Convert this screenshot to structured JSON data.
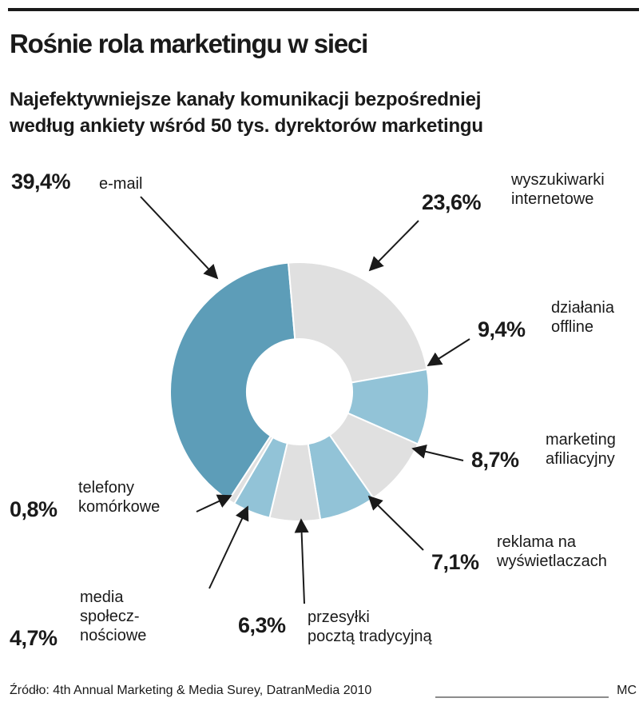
{
  "chart_data": {
    "type": "donut",
    "title": "Rośnie rola marketingu w sieci",
    "subtitle": "Najefektywniejsze kanały komunikacji bezpośredniej\nwedług ankiety wśród 50 tys. dyrektorów marketingu",
    "categories": [
      "e-mail",
      "wyszukiwarki\ninternetowe",
      "działania\noffline",
      "marketing\nafiliacyjny",
      "reklama na\nwyświetlaczach",
      "przesyłki\npocztą tradycyjną",
      "media\nspołecz-\nnościowe",
      "telefony\nkomórkowe"
    ],
    "values": [
      39.4,
      23.6,
      9.4,
      8.7,
      7.1,
      6.3,
      4.7,
      0.8
    ],
    "value_labels": [
      "39,4%",
      "23,6%",
      "9,4%",
      "8,7%",
      "7,1%",
      "6,3%",
      "4,7%",
      "0,8%"
    ],
    "colors": [
      "#5d9db8",
      "#e0e0e0",
      "#92c3d7",
      "#e0e0e0",
      "#92c3d7",
      "#e0e0e0",
      "#92c3d7",
      "#e0e0e0"
    ],
    "source": "Źródło: 4th Annual Marketing & Media Surey, DatranMedia 2010",
    "credit": "MC"
  }
}
